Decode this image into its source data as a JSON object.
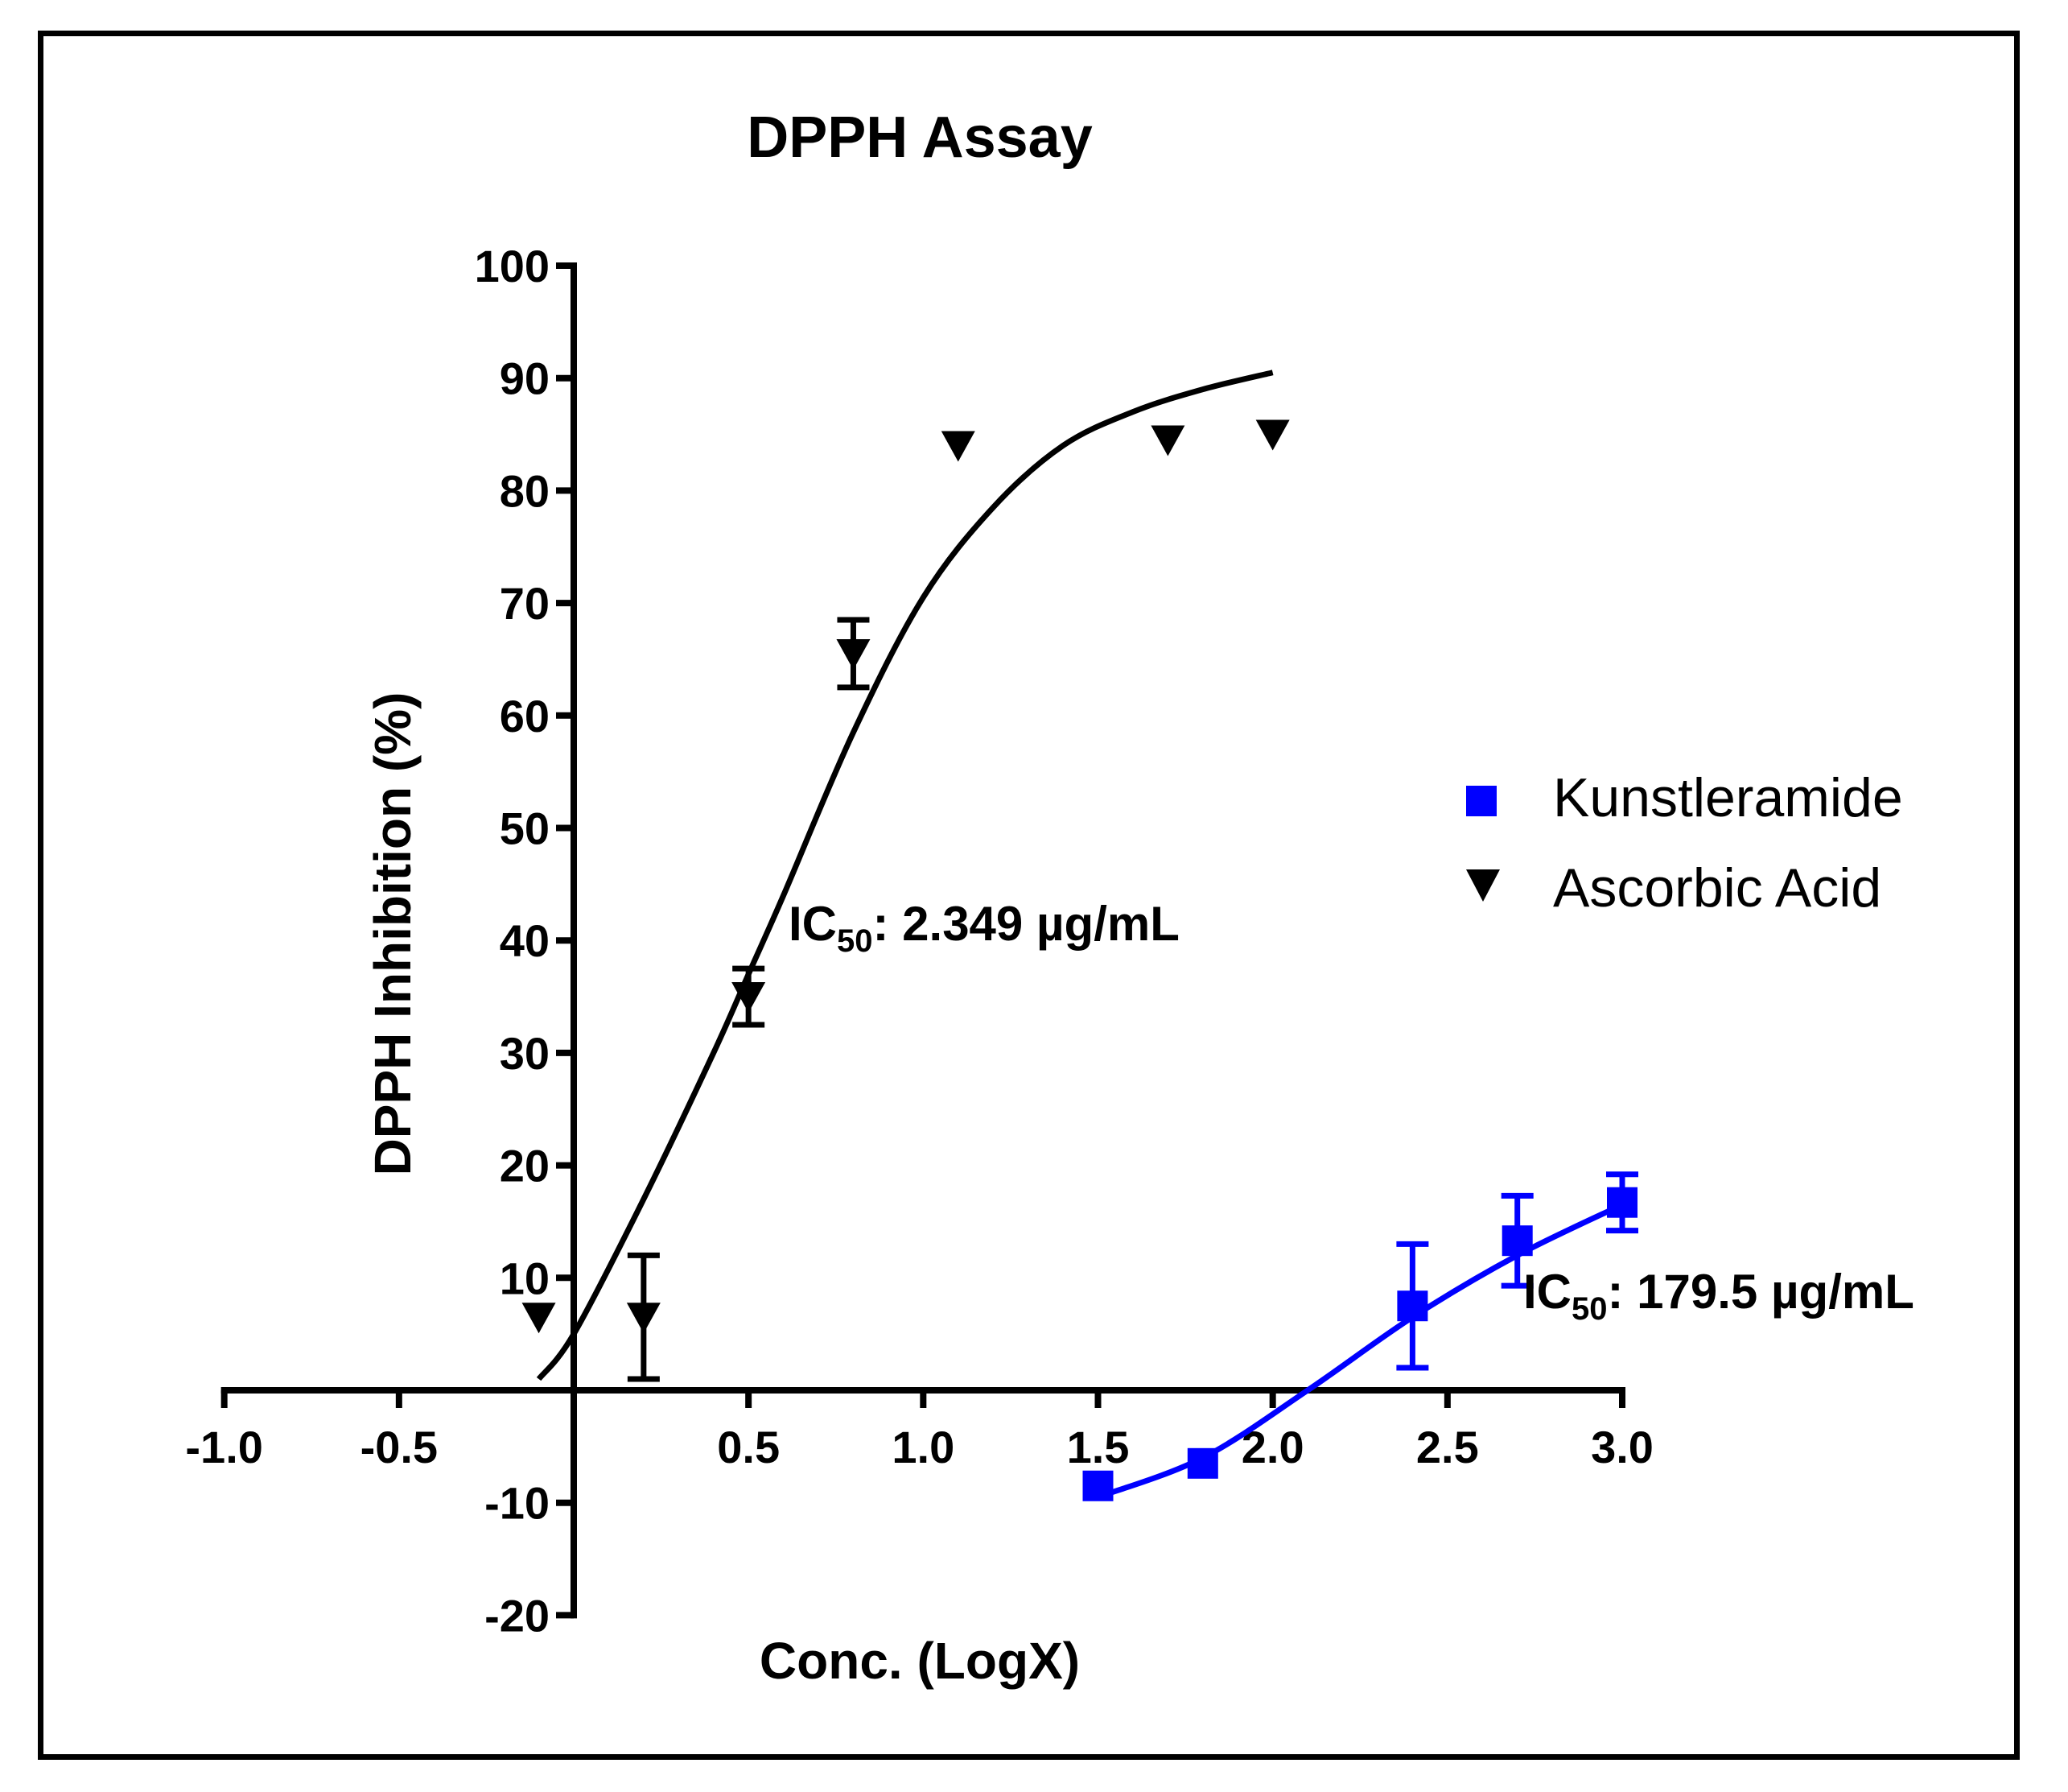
{
  "chart_data": {
    "type": "scatter",
    "title": "DPPH Assay",
    "xlabel": "Conc. (LogX)",
    "ylabel": "DPPH Inhibition (%)",
    "xlim": [
      -1.0,
      3.0
    ],
    "ylim": [
      -20,
      100
    ],
    "x_ticks": [
      "-1.0",
      "-0.5",
      "0.5",
      "1.0",
      "1.5",
      "2.0",
      "2.5",
      "3.0"
    ],
    "x_tick_values": [
      -1.0,
      -0.5,
      0.5,
      1.0,
      1.5,
      2.0,
      2.5,
      3.0
    ],
    "y_ticks": [
      "100",
      "90",
      "80",
      "70",
      "60",
      "50",
      "40",
      "30",
      "20",
      "10",
      "-10",
      "-20"
    ],
    "y_tick_values": [
      100,
      90,
      80,
      70,
      60,
      50,
      40,
      30,
      20,
      10,
      -10,
      -20
    ],
    "grid": false,
    "legend_position": "right",
    "series": [
      {
        "name": "Kunstleramide",
        "color": "#0000ff",
        "marker": "square",
        "x": [
          1.5,
          1.8,
          2.4,
          2.7,
          3.0
        ],
        "y": [
          -8.5,
          -6.5,
          7.5,
          13.3,
          16.7
        ],
        "err": [
          0,
          0,
          5.5,
          4.0,
          2.5
        ],
        "fit_x": [
          1.5,
          1.8,
          2.1,
          2.4,
          2.7,
          3.0
        ],
        "fit_y": [
          -9.5,
          -6.0,
          0.0,
          6.5,
          12.0,
          16.5
        ]
      },
      {
        "name": "Ascorbic Acid",
        "color": "#000000",
        "marker": "triangle-down",
        "x": [
          -0.1,
          0.2,
          0.5,
          0.8,
          1.1,
          1.7,
          2.0
        ],
        "y": [
          6.5,
          6.5,
          35.0,
          65.5,
          84.0,
          84.5,
          85.0
        ],
        "err": [
          0,
          5.5,
          2.5,
          3.0,
          0,
          0,
          0
        ],
        "fit_x": [
          -0.1,
          0.0,
          0.2,
          0.4,
          0.5,
          0.6,
          0.8,
          1.0,
          1.2,
          1.4,
          1.6,
          1.8,
          2.0
        ],
        "fit_y": [
          1.0,
          5.0,
          17.0,
          30.0,
          37.0,
          44.0,
          58.5,
          70.5,
          78.5,
          84.0,
          87.0,
          89.0,
          90.5
        ]
      }
    ],
    "annotations": [
      {
        "text_main": "IC",
        "text_sub": "50",
        "text_rest": ": 2.349 µg/mL"
      },
      {
        "text_main": "IC",
        "text_sub": "50",
        "text_rest": ": 179.5 µg/mL"
      }
    ]
  }
}
